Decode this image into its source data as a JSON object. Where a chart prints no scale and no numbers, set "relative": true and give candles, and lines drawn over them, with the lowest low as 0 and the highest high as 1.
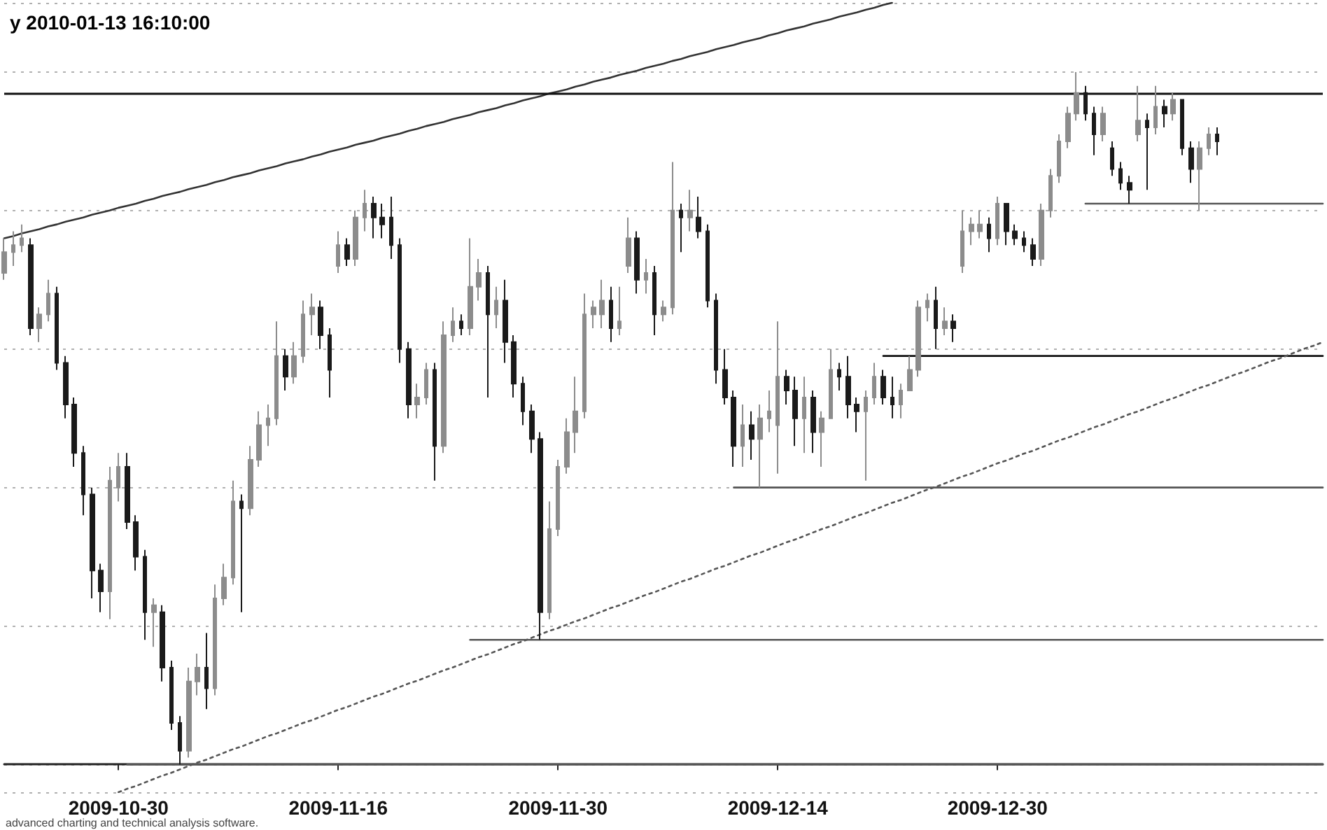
{
  "chart_data": {
    "type": "candlestick",
    "title": "y 2010-01-13 16:10:00",
    "annotations": [
      "advanced charting and technical analysis software."
    ],
    "relative": true,
    "grid": "y",
    "categories": [
      null,
      null,
      null,
      null,
      null,
      null,
      null,
      null,
      null,
      null,
      null,
      null,
      null,
      "2009-10-30",
      null,
      null,
      null,
      null,
      null,
      null,
      null,
      null,
      null,
      null,
      null,
      null,
      null,
      null,
      null,
      null,
      null,
      null,
      null,
      null,
      null,
      null,
      null,
      null,
      "2009-11-16",
      null,
      null,
      null,
      null,
      null,
      null,
      null,
      null,
      null,
      null,
      null,
      null,
      null,
      null,
      null,
      null,
      null,
      null,
      null,
      null,
      null,
      null,
      null,
      null,
      "2009-11-30",
      null,
      null,
      null,
      null,
      null,
      null,
      null,
      null,
      null,
      null,
      null,
      null,
      null,
      null,
      null,
      null,
      null,
      null,
      null,
      null,
      null,
      null,
      null,
      null,
      "2009-12-14",
      null,
      null,
      null,
      null,
      null,
      null,
      null,
      null,
      null,
      null,
      null,
      null,
      null,
      null,
      null,
      null,
      null,
      null,
      null,
      null,
      null,
      null,
      null,
      null,
      "2009-12-30",
      null,
      null,
      null,
      null,
      null,
      null,
      null,
      null,
      null,
      null,
      null,
      null,
      null,
      null,
      null,
      null,
      null,
      null,
      null,
      null,
      null,
      null,
      null,
      null,
      null,
      null,
      null,
      null,
      null,
      null,
      null,
      null,
      null,
      null,
      null,
      null,
      null
    ],
    "ref_lines": [
      {
        "axis": "y",
        "value": 0.97,
        "color": "#111111"
      }
    ],
    "series": [
      {
        "type": "line",
        "color": "#333333",
        "values": [
          0.76,
          0.763,
          0.767,
          0.77,
          0.773,
          0.777,
          0.78,
          0.784,
          0.787,
          0.79,
          0.794,
          0.797,
          0.8,
          0.804,
          0.807,
          0.81,
          0.814,
          0.817,
          0.821,
          0.824,
          0.827,
          0.831,
          0.834,
          0.837,
          0.841,
          0.844,
          0.848,
          0.851,
          0.854,
          0.858,
          0.861,
          0.864,
          0.868,
          0.871,
          0.874,
          0.878,
          0.881,
          0.885,
          0.888,
          0.891,
          0.895,
          0.898,
          0.901,
          0.905,
          0.908,
          0.911,
          0.915,
          0.918,
          0.922,
          0.925,
          0.928,
          0.932,
          0.935,
          0.938,
          0.942,
          0.945,
          0.948,
          0.952,
          0.955,
          0.959,
          0.962,
          0.965,
          0.969,
          0.972,
          0.975,
          0.979,
          0.982,
          0.986,
          0.989,
          0.992,
          0.996,
          0.999,
          1.002,
          1.006,
          1.009,
          1.012,
          1.016,
          1.019,
          1.023,
          1.026,
          1.029,
          1.033,
          1.036,
          1.039,
          1.043,
          1.046,
          1.049,
          1.053,
          1.056,
          1.06,
          1.063,
          1.066,
          1.07,
          1.073,
          1.076,
          1.08,
          1.083,
          1.086,
          1.09,
          1.093,
          1.097,
          1.1,
          null,
          null,
          null,
          null,
          null,
          null,
          null,
          null,
          null,
          null,
          null,
          null,
          null,
          null,
          null,
          null,
          null,
          null,
          null,
          null,
          null,
          null,
          null,
          null,
          null,
          null,
          null,
          null,
          null,
          null,
          null,
          null,
          null,
          null,
          null,
          null,
          null,
          null,
          null,
          null,
          null,
          null,
          null,
          null,
          null,
          null,
          null,
          null,
          null
        ]
      },
      {
        "type": "line",
        "color": "#555555",
        "values": [
          null,
          null,
          null,
          null,
          null,
          null,
          null,
          null,
          null,
          null,
          null,
          null,
          null,
          null,
          null,
          null,
          null,
          null,
          null,
          null,
          null,
          null,
          null,
          null,
          null,
          null,
          null,
          null,
          null,
          null,
          null,
          null,
          null,
          null,
          null,
          null,
          null,
          null,
          null,
          null,
          null,
          null,
          null,
          null,
          null,
          null,
          null,
          null,
          null,
          null,
          null,
          null,
          null,
          null,
          null,
          null,
          null,
          null,
          null,
          null,
          null,
          null,
          null,
          null,
          null,
          null,
          null,
          null,
          null,
          null,
          null,
          null,
          null,
          null,
          null,
          null,
          null,
          null,
          null,
          null,
          null,
          null,
          null,
          null,
          null,
          null,
          null,
          null,
          null,
          null,
          null,
          null,
          null,
          null,
          null,
          null,
          null,
          null,
          null,
          null,
          null,
          null,
          null,
          null,
          null,
          null,
          null,
          null,
          null,
          null,
          null,
          null,
          null,
          null,
          null,
          null,
          null,
          null,
          null,
          null,
          null,
          null,
          null,
          0.81,
          0.81,
          0.81,
          0.81,
          0.81,
          0.81,
          0.81,
          0.81,
          0.81,
          0.81,
          0.81,
          0.81,
          0.81,
          0.81,
          0.81,
          0.81,
          0.81,
          0.81,
          0.81,
          0.81,
          0.81,
          0.81,
          0.81,
          0.81,
          0.81,
          0.81,
          0.81,
          0.81
        ]
      },
      {
        "type": "line",
        "color": "#111111",
        "values": [
          null,
          null,
          null,
          null,
          null,
          null,
          null,
          null,
          null,
          null,
          null,
          null,
          null,
          null,
          null,
          null,
          null,
          null,
          null,
          null,
          null,
          null,
          null,
          null,
          null,
          null,
          null,
          null,
          null,
          null,
          null,
          null,
          null,
          null,
          null,
          null,
          null,
          null,
          null,
          null,
          null,
          null,
          null,
          null,
          null,
          null,
          null,
          null,
          null,
          null,
          null,
          null,
          null,
          null,
          null,
          null,
          null,
          null,
          null,
          null,
          null,
          null,
          null,
          null,
          null,
          null,
          null,
          null,
          null,
          null,
          null,
          null,
          null,
          null,
          null,
          null,
          null,
          null,
          null,
          null,
          null,
          null,
          null,
          null,
          null,
          null,
          null,
          null,
          null,
          null,
          null,
          null,
          null,
          null,
          null,
          null,
          null,
          null,
          null,
          null,
          0.59,
          0.59,
          0.59,
          0.59,
          0.59,
          0.59,
          0.59,
          0.59,
          0.59,
          0.59,
          0.59,
          0.59,
          0.59,
          0.59,
          0.59,
          0.59,
          0.59,
          0.59,
          0.59,
          0.59,
          0.59,
          0.59,
          0.59,
          0.59,
          0.59,
          0.59,
          0.59,
          0.59,
          0.59,
          0.59,
          0.59,
          0.59,
          0.59,
          0.59,
          0.59,
          0.59,
          0.59,
          0.59,
          0.59,
          0.59,
          0.59,
          0.59,
          0.59,
          0.59,
          0.59,
          0.59,
          0.59,
          0.59,
          0.59,
          0.59,
          0.59
        ]
      },
      {
        "type": "line",
        "color": "#555555",
        "values": [
          null,
          null,
          null,
          null,
          null,
          null,
          null,
          null,
          null,
          null,
          null,
          null,
          null,
          null,
          null,
          null,
          null,
          null,
          null,
          null,
          null,
          null,
          null,
          null,
          null,
          null,
          null,
          null,
          null,
          null,
          null,
          null,
          null,
          null,
          null,
          null,
          null,
          null,
          null,
          null,
          null,
          null,
          null,
          null,
          null,
          null,
          null,
          null,
          null,
          null,
          null,
          null,
          null,
          null,
          null,
          null,
          null,
          null,
          null,
          null,
          null,
          null,
          null,
          null,
          null,
          null,
          null,
          null,
          null,
          null,
          null,
          null,
          null,
          null,
          null,
          null,
          null,
          null,
          null,
          null,
          null,
          null,
          null,
          0.4,
          0.4,
          0.4,
          0.4,
          0.4,
          0.4,
          0.4,
          0.4,
          0.4,
          0.4,
          0.4,
          0.4,
          0.4,
          0.4,
          0.4,
          0.4,
          0.4,
          0.4,
          0.4,
          0.4,
          0.4,
          0.4,
          0.4,
          0.4,
          0.4,
          0.4,
          0.4,
          0.4,
          0.4,
          0.4,
          0.4,
          0.4,
          0.4,
          0.4,
          0.4,
          0.4,
          0.4,
          0.4,
          0.4,
          0.4,
          0.4,
          0.4,
          0.4,
          0.4,
          0.4,
          0.4,
          0.4,
          0.4,
          0.4,
          0.4,
          0.4,
          0.4,
          0.4,
          0.4,
          0.4,
          0.4,
          0.4,
          0.4,
          0.4,
          0.4,
          0.4,
          0.4,
          0.4,
          0.4,
          0.4,
          0.4,
          0.4,
          0.4
        ]
      },
      {
        "type": "line",
        "color": "#555555",
        "values": [
          null,
          null,
          null,
          null,
          null,
          null,
          null,
          null,
          null,
          null,
          null,
          null,
          null,
          null,
          null,
          null,
          null,
          null,
          null,
          null,
          null,
          null,
          null,
          null,
          null,
          null,
          null,
          null,
          null,
          null,
          null,
          null,
          null,
          null,
          null,
          null,
          null,
          null,
          null,
          null,
          null,
          null,
          null,
          null,
          null,
          null,
          null,
          null,
          null,
          null,
          null,
          null,
          null,
          0.18,
          0.18,
          0.18,
          0.18,
          0.18,
          0.18,
          0.18,
          0.18,
          0.18,
          0.18,
          0.18,
          0.18,
          0.18,
          0.18,
          0.18,
          0.18,
          0.18,
          0.18,
          0.18,
          0.18,
          0.18,
          0.18,
          0.18,
          0.18,
          0.18,
          0.18,
          0.18,
          0.18,
          0.18,
          0.18,
          0.18,
          0.18,
          0.18,
          0.18,
          0.18,
          0.18,
          0.18,
          0.18,
          0.18,
          0.18,
          0.18,
          0.18,
          0.18,
          0.18,
          0.18,
          0.18,
          0.18,
          0.18,
          0.18,
          0.18,
          0.18,
          0.18,
          0.18,
          0.18,
          0.18,
          0.18,
          0.18,
          0.18,
          0.18,
          0.18,
          0.18,
          0.18,
          0.18,
          0.18,
          0.18,
          0.18,
          0.18,
          0.18,
          0.18,
          0.18,
          0.18,
          0.18,
          0.18,
          0.18,
          0.18,
          0.18,
          0.18,
          0.18,
          0.18,
          0.18,
          0.18,
          0.18,
          0.18,
          0.18,
          0.18,
          0.18,
          0.18,
          0.18,
          0.18,
          0.18,
          0.18,
          0.18,
          0.18,
          0.18,
          0.18,
          0.18,
          0.18,
          0.18
        ]
      },
      {
        "type": "line",
        "color": "#555555",
        "values": [
          null,
          null,
          null,
          null,
          null,
          null,
          null,
          null,
          null,
          null,
          null,
          null,
          null,
          null,
          0,
          0,
          0,
          0,
          0,
          0,
          0,
          0,
          0,
          0,
          0,
          0,
          0,
          0,
          0,
          0,
          0,
          0,
          0,
          0,
          0,
          0,
          0,
          0,
          0,
          0,
          0,
          0,
          0,
          0,
          0,
          0,
          0,
          0,
          0,
          0,
          0,
          0,
          0,
          0,
          0,
          0,
          0,
          0,
          0,
          0,
          0,
          0,
          0,
          0,
          0,
          0,
          0,
          0,
          0,
          0,
          0,
          0,
          0,
          0,
          0,
          0,
          0,
          0,
          0,
          0,
          0,
          0,
          0,
          0,
          0,
          0,
          0,
          0,
          0,
          0,
          0,
          0,
          0,
          0,
          0,
          0,
          0,
          0,
          0,
          0,
          0,
          0,
          0,
          0,
          0,
          0,
          0,
          0,
          0,
          0,
          0,
          0,
          0,
          0,
          0,
          0,
          0,
          0,
          0,
          0,
          0,
          0,
          0,
          0,
          0,
          0,
          0,
          0,
          0,
          0,
          0,
          0,
          0,
          0,
          0,
          0,
          0,
          0,
          0,
          0,
          0,
          0,
          0,
          0,
          0,
          0,
          0,
          0,
          0,
          0,
          0
        ]
      },
      {
        "type": "line",
        "color": "#555555",
        "line_style": "dotted",
        "values": [
          null,
          null,
          null,
          null,
          null,
          null,
          null,
          null,
          null,
          null,
          null,
          null,
          null,
          -0.04,
          -0.035,
          -0.031,
          -0.026,
          -0.021,
          -0.016,
          -0.012,
          -0.007,
          -0.002,
          0.003,
          0.007,
          0.012,
          0.017,
          0.022,
          0.026,
          0.031,
          0.036,
          0.041,
          0.045,
          0.05,
          0.055,
          0.06,
          0.064,
          0.069,
          0.074,
          0.079,
          0.083,
          0.088,
          0.093,
          0.098,
          0.102,
          0.107,
          0.112,
          0.117,
          0.121,
          0.126,
          0.131,
          0.136,
          0.14,
          0.145,
          0.15,
          0.155,
          0.159,
          0.164,
          0.169,
          0.174,
          0.178,
          0.183,
          0.188,
          0.193,
          0.197,
          0.202,
          0.207,
          0.211,
          0.216,
          0.221,
          0.226,
          0.23,
          0.235,
          0.24,
          0.245,
          0.249,
          0.254,
          0.259,
          0.264,
          0.268,
          0.273,
          0.278,
          0.283,
          0.287,
          0.292,
          0.297,
          0.302,
          0.306,
          0.311,
          0.316,
          0.321,
          0.325,
          0.33,
          0.335,
          0.34,
          0.344,
          0.349,
          0.354,
          0.359,
          0.363,
          0.368,
          0.373,
          0.378,
          0.382,
          0.387,
          0.392,
          0.397,
          0.401,
          0.406,
          0.411,
          0.416,
          0.42,
          0.425,
          0.43,
          0.435,
          0.439,
          0.444,
          0.449,
          0.453,
          0.458,
          0.463,
          0.468,
          0.472,
          0.477,
          0.482,
          0.487,
          0.491,
          0.496,
          0.501,
          0.506,
          0.51,
          0.515,
          0.52,
          0.525,
          0.529,
          0.534,
          0.539,
          0.544,
          0.548,
          0.553,
          0.558,
          0.563,
          0.567,
          0.572,
          0.577,
          0.582,
          0.586,
          0.591,
          0.596,
          0.601,
          0.605,
          0.61
        ]
      },
      {
        "colors": [
          "#8c8c8c",
          "#8c8c8c",
          "#8c8c8c",
          "#1a1a1a",
          "#8c8c8c",
          "#8c8c8c",
          "#1a1a1a",
          "#1a1a1a",
          "#1a1a1a",
          "#1a1a1a",
          "#1a1a1a",
          "#1a1a1a",
          "#8c8c8c",
          "#8c8c8c",
          "#1a1a1a",
          "#1a1a1a",
          "#1a1a1a",
          "#8c8c8c",
          "#1a1a1a",
          "#1a1a1a",
          "#1a1a1a",
          "#8c8c8c",
          "#8c8c8c",
          "#1a1a1a",
          "#8c8c8c",
          "#8c8c8c",
          "#8c8c8c",
          "#1a1a1a",
          "#8c8c8c",
          "#8c8c8c",
          "#8c8c8c",
          "#8c8c8c",
          "#1a1a1a",
          "#8c8c8c",
          "#8c8c8c",
          "#8c8c8c",
          "#1a1a1a",
          "#1a1a1a",
          "#8c8c8c",
          "#1a1a1a",
          "#8c8c8c",
          "#8c8c8c",
          "#1a1a1a",
          "#1a1a1a",
          "#1a1a1a",
          "#1a1a1a",
          "#1a1a1a",
          "#8c8c8c",
          "#8c8c8c",
          "#1a1a1a",
          "#8c8c8c",
          "#8c8c8c",
          "#1a1a1a",
          "#8c8c8c",
          "#8c8c8c",
          "#1a1a1a",
          "#8c8c8c",
          "#1a1a1a",
          "#1a1a1a",
          "#1a1a1a",
          "#1a1a1a",
          "#1a1a1a",
          "#8c8c8c",
          "#8c8c8c",
          "#8c8c8c",
          "#8c8c8c",
          "#8c8c8c",
          "#8c8c8c",
          "#8c8c8c",
          "#1a1a1a",
          "#8c8c8c",
          "#8c8c8c",
          "#1a1a1a",
          "#8c8c8c",
          "#1a1a1a",
          "#8c8c8c",
          "#8c8c8c",
          "#1a1a1a",
          "#8c8c8c",
          "#1a1a1a",
          "#1a1a1a",
          "#1a1a1a",
          "#1a1a1a",
          "#1a1a1a",
          "#8c8c8c",
          "#1a1a1a",
          "#8c8c8c",
          "#8c8c8c",
          "#8c8c8c",
          "#1a1a1a",
          "#1a1a1a",
          "#8c8c8c",
          "#1a1a1a",
          "#8c8c8c",
          "#8c8c8c",
          "#1a1a1a",
          "#1a1a1a",
          "#1a1a1a",
          "#8c8c8c",
          "#8c8c8c",
          "#1a1a1a",
          "#1a1a1a",
          "#8c8c8c",
          "#8c8c8c",
          "#8c8c8c",
          "#8c8c8c",
          "#1a1a1a",
          "#8c8c8c",
          "#1a1a1a",
          "#8c8c8c",
          "#8c8c8c",
          "#8c8c8c",
          "#1a1a1a",
          "#8c8c8c",
          "#1a1a1a",
          "#1a1a1a",
          "#1a1a1a",
          "#1a1a1a",
          "#8c8c8c",
          "#8c8c8c",
          "#8c8c8c",
          "#8c8c8c",
          "#8c8c8c",
          "#1a1a1a",
          "#1a1a1a",
          "#8c8c8c",
          "#1a1a1a",
          "#1a1a1a",
          "#1a1a1a",
          "#8c8c8c",
          "#1a1a1a",
          "#8c8c8c",
          "#1a1a1a",
          "#8c8c8c",
          "#1a1a1a",
          "#1a1a1a",
          "#8c8c8c",
          "#8c8c8c",
          "#1a1a1a",
          null,
          null,
          null,
          null,
          null,
          null,
          null,
          null,
          null,
          null,
          null,
          null
        ],
        "ohlc": [
          [
            0.71,
            0.76,
            0.7,
            0.74
          ],
          [
            0.74,
            0.77,
            0.72,
            0.75
          ],
          [
            0.75,
            0.78,
            0.74,
            0.76
          ],
          [
            0.75,
            0.76,
            0.62,
            0.63
          ],
          [
            0.63,
            0.66,
            0.61,
            0.65
          ],
          [
            0.65,
            0.7,
            0.64,
            0.68
          ],
          [
            0.68,
            0.69,
            0.57,
            0.58
          ],
          [
            0.58,
            0.59,
            0.5,
            0.52
          ],
          [
            0.52,
            0.53,
            0.43,
            0.45
          ],
          [
            0.45,
            0.46,
            0.36,
            0.39
          ],
          [
            0.39,
            0.4,
            0.24,
            0.28
          ],
          [
            0.28,
            0.29,
            0.22,
            0.25
          ],
          [
            0.25,
            0.43,
            0.21,
            0.41
          ],
          [
            0.4,
            0.45,
            0.38,
            0.43
          ],
          [
            0.43,
            0.45,
            0.34,
            0.35
          ],
          [
            0.35,
            0.36,
            0.28,
            0.3
          ],
          [
            0.3,
            0.31,
            0.18,
            0.22
          ],
          [
            0.22,
            0.24,
            0.17,
            0.23
          ],
          [
            0.22,
            0.23,
            0.12,
            0.14
          ],
          [
            0.14,
            0.15,
            0.05,
            0.06
          ],
          [
            0.06,
            0.07,
            0,
            0.02
          ],
          [
            0.02,
            0.14,
            0.01,
            0.12
          ],
          [
            0.12,
            0.16,
            0.1,
            0.14
          ],
          [
            0.14,
            0.19,
            0.08,
            0.11
          ],
          [
            0.11,
            0.26,
            0.1,
            0.24
          ],
          [
            0.24,
            0.29,
            0.23,
            0.27
          ],
          [
            0.27,
            0.41,
            0.26,
            0.38
          ],
          [
            0.38,
            0.39,
            0.22,
            0.37
          ],
          [
            0.37,
            0.46,
            0.36,
            0.44
          ],
          [
            0.44,
            0.51,
            0.43,
            0.49
          ],
          [
            0.49,
            0.52,
            0.46,
            0.5
          ],
          [
            0.5,
            0.64,
            0.49,
            0.59
          ],
          [
            0.59,
            0.6,
            0.54,
            0.56
          ],
          [
            0.56,
            0.61,
            0.55,
            0.59
          ],
          [
            0.59,
            0.67,
            0.58,
            0.65
          ],
          [
            0.65,
            0.68,
            0.62,
            0.66
          ],
          [
            0.66,
            0.67,
            0.6,
            0.62
          ],
          [
            0.62,
            0.63,
            0.53,
            0.57
          ],
          [
            0.72,
            0.77,
            0.71,
            0.75
          ],
          [
            0.75,
            0.76,
            0.72,
            0.73
          ],
          [
            0.73,
            0.8,
            0.72,
            0.79
          ],
          [
            0.79,
            0.83,
            0.77,
            0.81
          ],
          [
            0.81,
            0.82,
            0.76,
            0.79
          ],
          [
            0.79,
            0.81,
            0.76,
            0.78
          ],
          [
            0.79,
            0.82,
            0.73,
            0.75
          ],
          [
            0.75,
            0.76,
            0.58,
            0.6
          ],
          [
            0.6,
            0.61,
            0.5,
            0.52
          ],
          [
            0.52,
            0.55,
            0.5,
            0.53
          ],
          [
            0.53,
            0.58,
            0.52,
            0.57
          ],
          [
            0.57,
            0.58,
            0.41,
            0.46
          ],
          [
            0.46,
            0.64,
            0.45,
            0.62
          ],
          [
            0.62,
            0.66,
            0.61,
            0.64
          ],
          [
            0.64,
            0.65,
            0.62,
            0.63
          ],
          [
            0.63,
            0.76,
            0.62,
            0.69
          ],
          [
            0.69,
            0.73,
            0.67,
            0.71
          ],
          [
            0.71,
            0.72,
            0.53,
            0.65
          ],
          [
            0.65,
            0.69,
            0.63,
            0.67
          ],
          [
            0.67,
            0.7,
            0.58,
            0.61
          ],
          [
            0.61,
            0.62,
            0.53,
            0.55
          ],
          [
            0.55,
            0.56,
            0.49,
            0.51
          ],
          [
            0.51,
            0.52,
            0.45,
            0.47
          ],
          [
            0.47,
            0.48,
            0.18,
            0.22
          ],
          [
            0.22,
            0.38,
            0.21,
            0.34
          ],
          [
            0.34,
            0.44,
            0.33,
            0.43
          ],
          [
            0.43,
            0.5,
            0.42,
            0.48
          ],
          [
            0.48,
            0.56,
            0.45,
            0.51
          ],
          [
            0.51,
            0.68,
            0.5,
            0.65
          ],
          [
            0.65,
            0.67,
            0.63,
            0.66
          ],
          [
            0.65,
            0.7,
            0.63,
            0.67
          ],
          [
            0.67,
            0.69,
            0.61,
            0.63
          ],
          [
            0.63,
            0.69,
            0.62,
            0.64
          ],
          [
            0.72,
            0.79,
            0.71,
            0.76
          ],
          [
            0.76,
            0.77,
            0.68,
            0.7
          ],
          [
            0.7,
            0.73,
            0.68,
            0.71
          ],
          [
            0.71,
            0.72,
            0.62,
            0.65
          ],
          [
            0.65,
            0.67,
            0.64,
            0.66
          ],
          [
            0.66,
            0.87,
            0.65,
            0.8
          ],
          [
            0.8,
            0.81,
            0.74,
            0.79
          ],
          [
            0.79,
            0.83,
            0.77,
            0.8
          ],
          [
            0.79,
            0.82,
            0.76,
            0.77
          ],
          [
            0.77,
            0.78,
            0.66,
            0.67
          ],
          [
            0.67,
            0.68,
            0.55,
            0.57
          ],
          [
            0.57,
            0.6,
            0.52,
            0.53
          ],
          [
            0.53,
            0.54,
            0.43,
            0.46
          ],
          [
            0.46,
            0.52,
            0.43,
            0.49
          ],
          [
            0.49,
            0.51,
            0.44,
            0.47
          ],
          [
            0.47,
            0.52,
            0.4,
            0.5
          ],
          [
            0.5,
            0.54,
            0.48,
            0.51
          ],
          [
            0.49,
            0.64,
            0.42,
            0.56
          ],
          [
            0.56,
            0.57,
            0.52,
            0.54
          ],
          [
            0.54,
            0.56,
            0.46,
            0.5
          ],
          [
            0.5,
            0.56,
            0.45,
            0.53
          ],
          [
            0.53,
            0.54,
            0.45,
            0.48
          ],
          [
            0.48,
            0.51,
            0.43,
            0.5
          ],
          [
            0.5,
            0.6,
            0.5,
            0.57
          ],
          [
            0.57,
            0.58,
            0.54,
            0.56
          ],
          [
            0.56,
            0.59,
            0.5,
            0.52
          ],
          [
            0.52,
            0.53,
            0.48,
            0.51
          ],
          [
            0.51,
            0.54,
            0.41,
            0.53
          ],
          [
            0.53,
            0.58,
            0.52,
            0.56
          ],
          [
            0.56,
            0.57,
            0.52,
            0.53
          ],
          [
            0.53,
            0.56,
            0.5,
            0.52
          ],
          [
            0.52,
            0.55,
            0.5,
            0.54
          ],
          [
            0.54,
            0.59,
            0.54,
            0.57
          ],
          [
            0.57,
            0.67,
            0.56,
            0.66
          ],
          [
            0.66,
            0.68,
            0.64,
            0.67
          ],
          [
            0.67,
            0.69,
            0.6,
            0.63
          ],
          [
            0.63,
            0.66,
            0.62,
            0.64
          ],
          [
            0.64,
            0.65,
            0.61,
            0.63
          ],
          [
            0.72,
            0.8,
            0.71,
            0.77
          ],
          [
            0.77,
            0.79,
            0.75,
            0.78
          ],
          [
            0.77,
            0.8,
            0.76,
            0.78
          ],
          [
            0.78,
            0.79,
            0.74,
            0.76
          ],
          [
            0.76,
            0.82,
            0.75,
            0.81
          ],
          [
            0.81,
            0.81,
            0.75,
            0.77
          ],
          [
            0.77,
            0.78,
            0.75,
            0.76
          ],
          [
            0.76,
            0.77,
            0.74,
            0.75
          ],
          [
            0.75,
            0.76,
            0.72,
            0.73
          ],
          [
            0.73,
            0.81,
            0.72,
            0.8
          ],
          [
            0.8,
            0.86,
            0.79,
            0.85
          ],
          [
            0.85,
            0.91,
            0.84,
            0.9
          ],
          [
            0.9,
            0.95,
            0.89,
            0.94
          ],
          [
            0.94,
            1,
            0.93,
            0.97
          ],
          [
            0.97,
            0.98,
            0.93,
            0.94
          ],
          [
            0.94,
            0.95,
            0.88,
            0.91
          ],
          [
            0.91,
            0.95,
            0.9,
            0.94
          ],
          [
            0.89,
            0.9,
            0.85,
            0.86
          ],
          [
            0.86,
            0.87,
            0.83,
            0.84
          ],
          [
            0.84,
            0.85,
            0.81,
            0.83
          ],
          [
            0.91,
            0.98,
            0.9,
            0.93
          ],
          [
            0.93,
            0.94,
            0.83,
            0.92
          ],
          [
            0.92,
            0.98,
            0.91,
            0.95
          ],
          [
            0.95,
            0.96,
            0.92,
            0.94
          ],
          [
            0.94,
            0.97,
            0.93,
            0.96
          ],
          [
            0.96,
            0.96,
            0.88,
            0.89
          ],
          [
            0.89,
            0.9,
            0.84,
            0.86
          ],
          [
            0.86,
            0.9,
            0.8,
            0.89
          ],
          [
            0.89,
            0.92,
            0.88,
            0.91
          ],
          [
            0.91,
            0.92,
            0.88,
            0.9
          ],
          null,
          null,
          null,
          null,
          null,
          null,
          null,
          null,
          null,
          null,
          null,
          null
        ]
      }
    ]
  }
}
